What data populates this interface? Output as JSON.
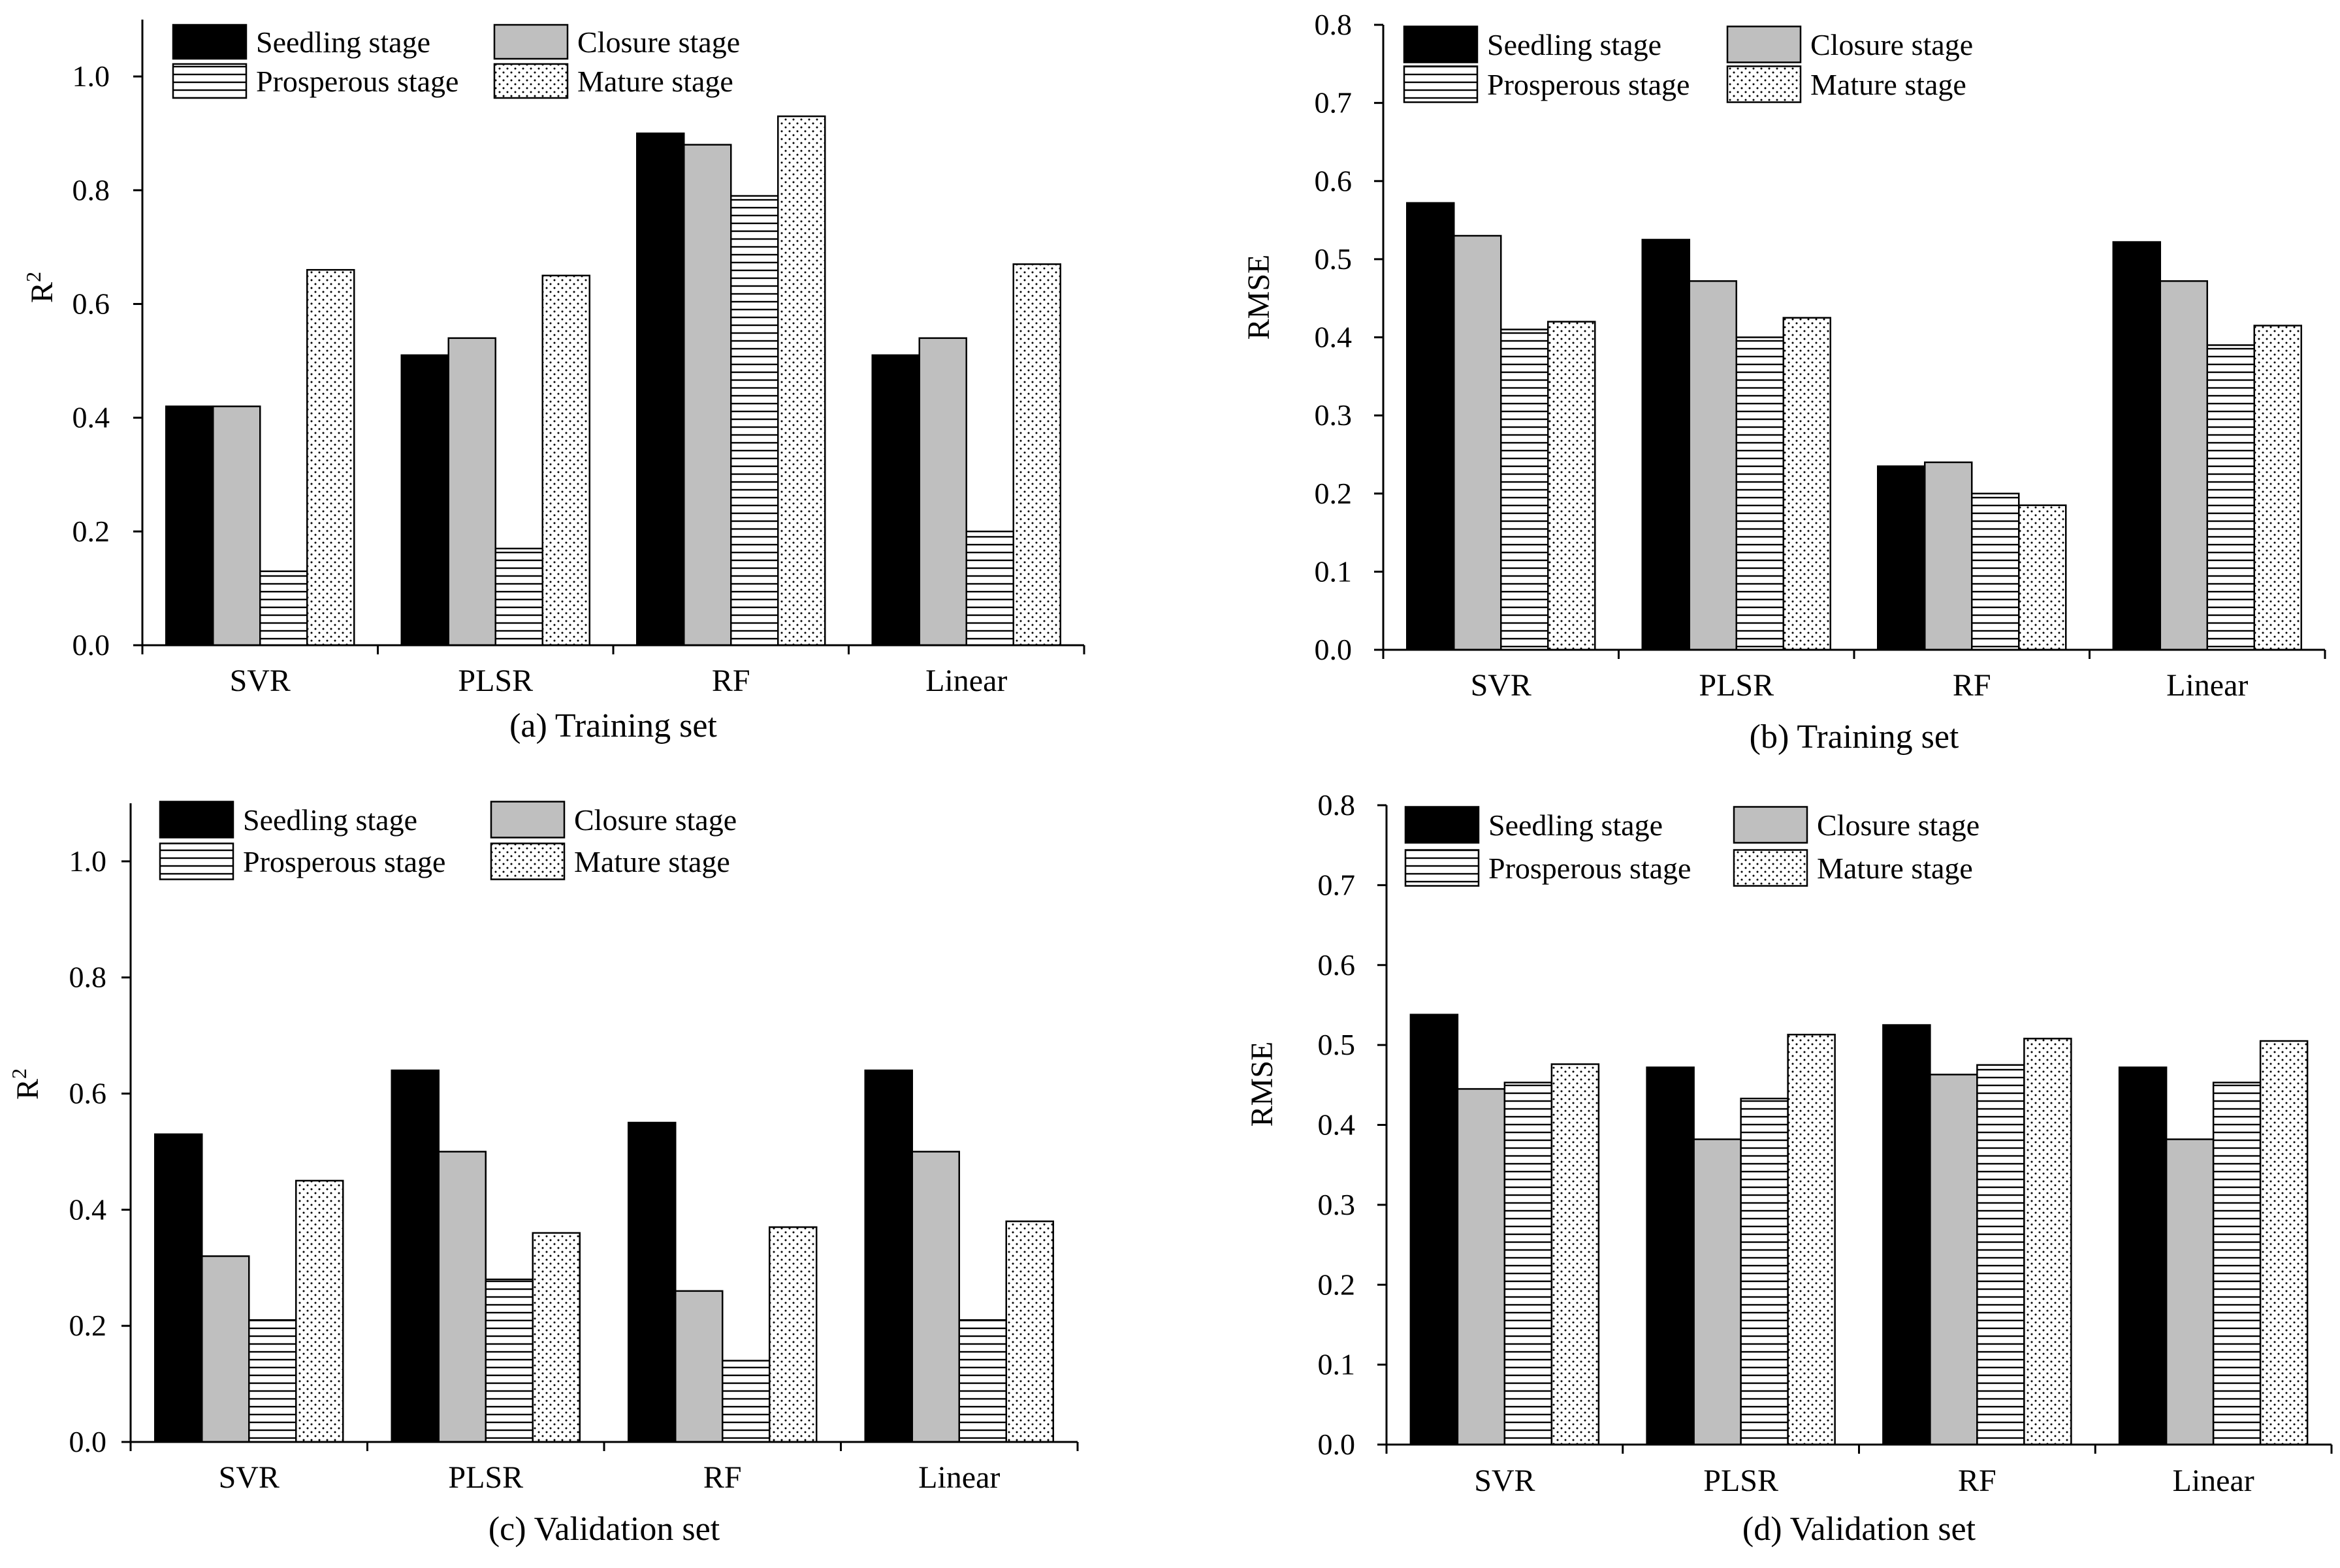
{
  "series_names": [
    "Seedling stage",
    "Closure stage",
    "Prosperous stage",
    "Mature stage"
  ],
  "series_fills": [
    "solid-black",
    "solid-gray",
    "horizontal-lines",
    "dots"
  ],
  "colors": {
    "seedling": "#000000",
    "closure": "#bfbfbf",
    "outline": "#000000"
  },
  "chart_data": [
    {
      "type": "bar",
      "caption": "(a) Training set",
      "ylabel": "R",
      "ylabel_sup": "2",
      "ylim": [
        0,
        1.1
      ],
      "yticks": [
        "0.0",
        "0.2",
        "0.4",
        "0.6",
        "0.8",
        "1.0"
      ],
      "categories": [
        "SVR",
        "PLSR",
        "RF",
        "Linear"
      ],
      "legend": "top-left",
      "series": [
        {
          "name": "Seedling stage",
          "values": [
            0.42,
            0.51,
            0.9,
            0.51
          ]
        },
        {
          "name": "Closure stage",
          "values": [
            0.42,
            0.54,
            0.88,
            0.54
          ]
        },
        {
          "name": "Prosperous stage",
          "values": [
            0.13,
            0.17,
            0.79,
            0.2
          ]
        },
        {
          "name": "Mature stage",
          "values": [
            0.66,
            0.65,
            0.93,
            0.67
          ]
        }
      ]
    },
    {
      "type": "bar",
      "caption": "(b) Training set",
      "ylabel": "RMSE",
      "ylim": [
        0,
        0.8
      ],
      "yticks": [
        "0.0",
        "0.1",
        "0.2",
        "0.3",
        "0.4",
        "0.5",
        "0.6",
        "0.7",
        "0.8"
      ],
      "categories": [
        "SVR",
        "PLSR",
        "RF",
        "Linear"
      ],
      "legend": "top-left",
      "series": [
        {
          "name": "Seedling stage",
          "values": [
            0.572,
            0.525,
            0.235,
            0.522
          ]
        },
        {
          "name": "Closure stage",
          "values": [
            0.53,
            0.472,
            0.24,
            0.472
          ]
        },
        {
          "name": "Prosperous stage",
          "values": [
            0.41,
            0.4,
            0.2,
            0.39
          ]
        },
        {
          "name": "Mature stage",
          "values": [
            0.42,
            0.425,
            0.185,
            0.415
          ]
        }
      ]
    },
    {
      "type": "bar",
      "caption": "(c) Validation set",
      "ylabel": "R",
      "ylabel_sup": "2",
      "ylim": [
        0,
        1.1
      ],
      "yticks": [
        "0.0",
        "0.2",
        "0.4",
        "0.6",
        "0.8",
        "1.0"
      ],
      "categories": [
        "SVR",
        "PLSR",
        "RF",
        "Linear"
      ],
      "legend": "top-left",
      "series": [
        {
          "name": "Seedling stage",
          "values": [
            0.53,
            0.64,
            0.55,
            0.64
          ]
        },
        {
          "name": "Closure stage",
          "values": [
            0.32,
            0.5,
            0.26,
            0.5
          ]
        },
        {
          "name": "Prosperous stage",
          "values": [
            0.21,
            0.28,
            0.14,
            0.21
          ]
        },
        {
          "name": "Mature stage",
          "values": [
            0.45,
            0.36,
            0.37,
            0.38
          ]
        }
      ]
    },
    {
      "type": "bar",
      "caption": "(d) Validation set",
      "ylabel": "RMSE",
      "ylim": [
        0,
        0.8
      ],
      "yticks": [
        "0.0",
        "0.1",
        "0.2",
        "0.3",
        "0.4",
        "0.5",
        "0.6",
        "0.7",
        "0.8"
      ],
      "categories": [
        "SVR",
        "PLSR",
        "RF",
        "Linear"
      ],
      "legend": "top-left",
      "series": [
        {
          "name": "Seedling stage",
          "values": [
            0.538,
            0.472,
            0.525,
            0.472
          ]
        },
        {
          "name": "Closure stage",
          "values": [
            0.445,
            0.382,
            0.463,
            0.382
          ]
        },
        {
          "name": "Prosperous stage",
          "values": [
            0.453,
            0.433,
            0.475,
            0.453
          ]
        },
        {
          "name": "Mature stage",
          "values": [
            0.476,
            0.513,
            0.508,
            0.505
          ]
        }
      ]
    }
  ]
}
